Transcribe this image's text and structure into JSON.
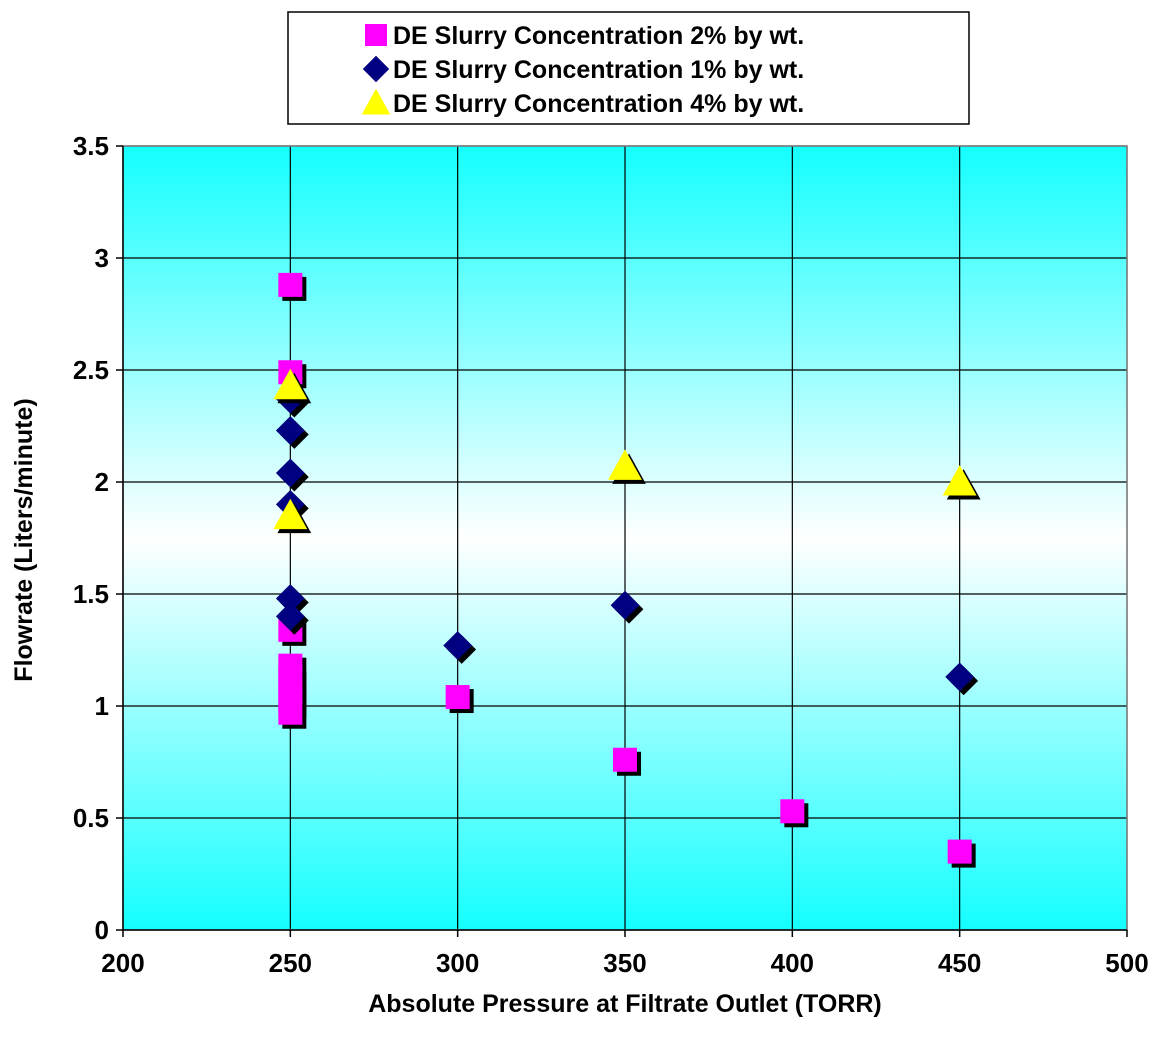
{
  "chart_data": {
    "type": "scatter",
    "xlabel": "Absolute Pressure at Filtrate Outlet (TORR)",
    "ylabel": "Flowrate (Liters/minute)",
    "xlim": [
      200,
      500
    ],
    "ylim": [
      0,
      3.5
    ],
    "xticks": [
      200,
      250,
      300,
      350,
      400,
      450,
      500
    ],
    "yticks": [
      0,
      0.5,
      1,
      1.5,
      2,
      2.5,
      3,
      3.5
    ],
    "xtick_labels": [
      "200",
      "250",
      "300",
      "350",
      "400",
      "450",
      "500"
    ],
    "ytick_labels": [
      "0",
      "0.5",
      "1",
      "1.5",
      "2",
      "2.5",
      "3",
      "3.5"
    ],
    "grid": true,
    "legend_position": "top-center",
    "background": {
      "top": "#ffffff",
      "bottom": "#14ffff"
    },
    "series": [
      {
        "name": "DE Slurry Concentration 2% by wt.",
        "marker": "square",
        "color": "#ff00ff",
        "points": [
          [
            250,
            2.88
          ],
          [
            250,
            2.49
          ],
          [
            250,
            1.34
          ],
          [
            250,
            1.18
          ],
          [
            250,
            1.12
          ],
          [
            250,
            1.07
          ],
          [
            250,
            1.02
          ],
          [
            250,
            0.97
          ],
          [
            300,
            1.04
          ],
          [
            350,
            0.76
          ],
          [
            400,
            0.53
          ],
          [
            450,
            0.35
          ]
        ]
      },
      {
        "name": "DE Slurry Concentration 1% by wt.",
        "marker": "diamond",
        "color": "#000080",
        "points": [
          [
            250,
            2.37
          ],
          [
            250,
            2.23
          ],
          [
            250,
            2.04
          ],
          [
            250,
            1.9
          ],
          [
            250,
            1.48
          ],
          [
            250,
            1.4
          ],
          [
            300,
            1.27
          ],
          [
            350,
            1.45
          ],
          [
            450,
            1.13
          ]
        ]
      },
      {
        "name": "DE Slurry Concentration 4% by wt.",
        "marker": "triangle",
        "color": "#ffff00",
        "points": [
          [
            250,
            2.43
          ],
          [
            250,
            1.85
          ],
          [
            350,
            2.07
          ],
          [
            450,
            2.0
          ]
        ]
      }
    ]
  }
}
